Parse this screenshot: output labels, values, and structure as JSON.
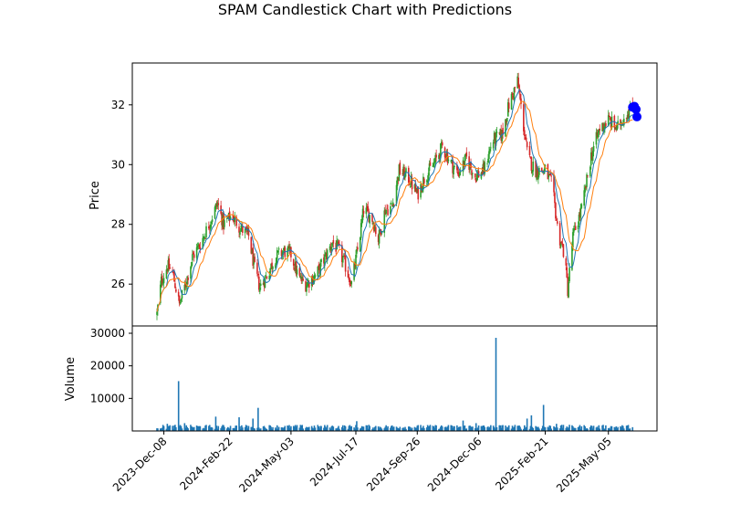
{
  "chart_data": {
    "type": "candlestick",
    "title": "SPAM Candlestick Chart with Predictions",
    "price_panel": {
      "ylabel": "Price",
      "ylim": [
        24.6,
        33.4
      ],
      "yticks": [
        26,
        28,
        30,
        32
      ],
      "up_color": "#2ca02c",
      "down_color": "#d62728",
      "ma_short_color": "#1f77b4",
      "ma_long_color": "#ff7f0e",
      "prediction_color": "#0000ff",
      "anchors": [
        [
          "2023-11-30",
          25.0
        ],
        [
          "2023-12-05",
          26.1
        ],
        [
          "2023-12-12",
          26.6
        ],
        [
          "2023-12-18",
          26.4
        ],
        [
          "2023-12-26",
          25.3
        ],
        [
          "2024-01-02",
          26.0
        ],
        [
          "2024-01-10",
          26.9
        ],
        [
          "2024-01-20",
          27.4
        ],
        [
          "2024-02-01",
          28.2
        ],
        [
          "2024-02-08",
          28.7
        ],
        [
          "2024-02-15",
          28.0
        ],
        [
          "2024-02-25",
          28.3
        ],
        [
          "2024-03-05",
          27.9
        ],
        [
          "2024-03-15",
          27.6
        ],
        [
          "2024-03-22",
          26.5
        ],
        [
          "2024-03-28",
          25.9
        ],
        [
          "2024-04-05",
          26.3
        ],
        [
          "2024-04-15",
          26.9
        ],
        [
          "2024-04-25",
          27.1
        ],
        [
          "2024-05-03",
          27.0
        ],
        [
          "2024-05-12",
          26.2
        ],
        [
          "2024-05-20",
          26.0
        ],
        [
          "2024-06-01",
          26.3
        ],
        [
          "2024-06-10",
          26.8
        ],
        [
          "2024-06-20",
          27.4
        ],
        [
          "2024-06-28",
          27.1
        ],
        [
          "2024-07-05",
          26.6
        ],
        [
          "2024-07-12",
          26.0
        ],
        [
          "2024-07-20",
          27.3
        ],
        [
          "2024-07-26",
          28.5
        ],
        [
          "2024-08-05",
          28.2
        ],
        [
          "2024-08-12",
          27.5
        ],
        [
          "2024-08-20",
          28.5
        ],
        [
          "2024-08-28",
          28.6
        ],
        [
          "2024-09-05",
          29.8
        ],
        [
          "2024-09-15",
          29.6
        ],
        [
          "2024-09-26",
          29.0
        ],
        [
          "2024-10-05",
          29.6
        ],
        [
          "2024-10-15",
          30.0
        ],
        [
          "2024-10-25",
          30.6
        ],
        [
          "2024-11-05",
          30.0
        ],
        [
          "2024-11-12",
          29.7
        ],
        [
          "2024-11-22",
          30.2
        ],
        [
          "2024-12-02",
          29.6
        ],
        [
          "2024-12-12",
          29.8
        ],
        [
          "2024-12-22",
          30.8
        ],
        [
          "2025-01-02",
          31.0
        ],
        [
          "2025-01-10",
          32.0
        ],
        [
          "2025-01-20",
          32.8
        ],
        [
          "2025-01-25",
          31.7
        ],
        [
          "2025-02-01",
          30.2
        ],
        [
          "2025-02-10",
          29.8
        ],
        [
          "2025-02-21",
          29.8
        ],
        [
          "2025-03-01",
          29.3
        ],
        [
          "2025-03-08",
          27.7
        ],
        [
          "2025-03-15",
          27.0
        ],
        [
          "2025-03-19",
          25.8
        ],
        [
          "2025-03-25",
          27.6
        ],
        [
          "2025-04-05",
          28.6
        ],
        [
          "2025-04-15",
          30.3
        ],
        [
          "2025-04-25",
          31.2
        ],
        [
          "2025-05-05",
          31.5
        ],
        [
          "2025-05-15",
          31.2
        ],
        [
          "2025-05-25",
          31.7
        ],
        [
          "2025-06-02",
          31.9
        ]
      ],
      "predictions": [
        {
          "date": "2025-06-02",
          "value": 31.92
        },
        {
          "date": "2025-06-04",
          "value": 31.95
        },
        {
          "date": "2025-06-06",
          "value": 31.85
        },
        {
          "date": "2025-06-07",
          "value": 31.6
        }
      ]
    },
    "volume_panel": {
      "ylabel": "Volume",
      "ylim": [
        0,
        30000
      ],
      "yticks": [
        10000,
        20000,
        30000
      ],
      "bar_color": "#1f77b4",
      "spikes": [
        [
          "2023-12-14",
          2200
        ],
        [
          "2023-12-26",
          15300
        ],
        [
          "2024-01-03",
          2400
        ],
        [
          "2024-02-08",
          4400
        ],
        [
          "2024-03-05",
          4200
        ],
        [
          "2024-03-22",
          3800
        ],
        [
          "2024-03-28",
          7100
        ],
        [
          "2024-07-20",
          3000
        ],
        [
          "2024-11-20",
          3200
        ],
        [
          "2024-12-05",
          2400
        ],
        [
          "2024-12-28",
          28600
        ],
        [
          "2025-02-02",
          3800
        ],
        [
          "2025-02-07",
          4800
        ],
        [
          "2025-02-21",
          8000
        ],
        [
          "2025-03-08",
          2200
        ]
      ]
    },
    "x_axis": {
      "start": "2023-11-30",
      "end": "2025-06-07",
      "ticks": [
        "2023-Dec-08",
        "2024-Feb-22",
        "2024-May-03",
        "2024-Jul-17",
        "2024-Sep-26",
        "2024-Dec-06",
        "2025-Feb-21",
        "2025-May-05"
      ]
    }
  }
}
